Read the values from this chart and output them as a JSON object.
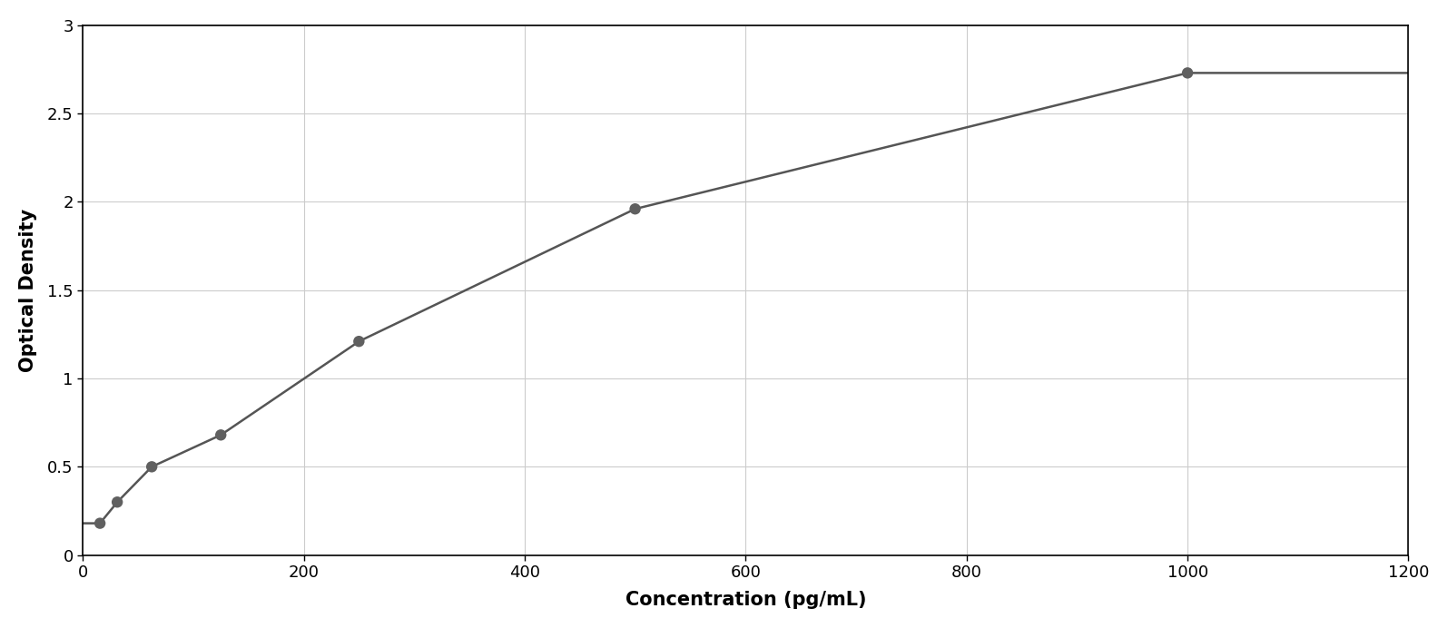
{
  "x_data": [
    15.625,
    31.25,
    62.5,
    125,
    250,
    500,
    1000
  ],
  "y_data": [
    0.18,
    0.3,
    0.5,
    0.68,
    1.21,
    1.96,
    2.73
  ],
  "xlabel": "Concentration (pg/mL)",
  "ylabel": "Optical Density",
  "xlim": [
    0,
    1200
  ],
  "ylim": [
    0,
    3
  ],
  "xticks": [
    0,
    200,
    400,
    600,
    800,
    1000,
    1200
  ],
  "yticks": [
    0,
    0.5,
    1.0,
    1.5,
    2.0,
    2.5,
    3.0
  ],
  "point_color": "#606060",
  "line_color": "#555555",
  "grid_color": "#cccccc",
  "background_color": "#ffffff",
  "border_color": "#000000",
  "point_size": 80,
  "line_width": 1.8,
  "xlabel_fontsize": 15,
  "ylabel_fontsize": 15,
  "tick_fontsize": 13,
  "fig_width": 15.95,
  "fig_height": 6.92
}
